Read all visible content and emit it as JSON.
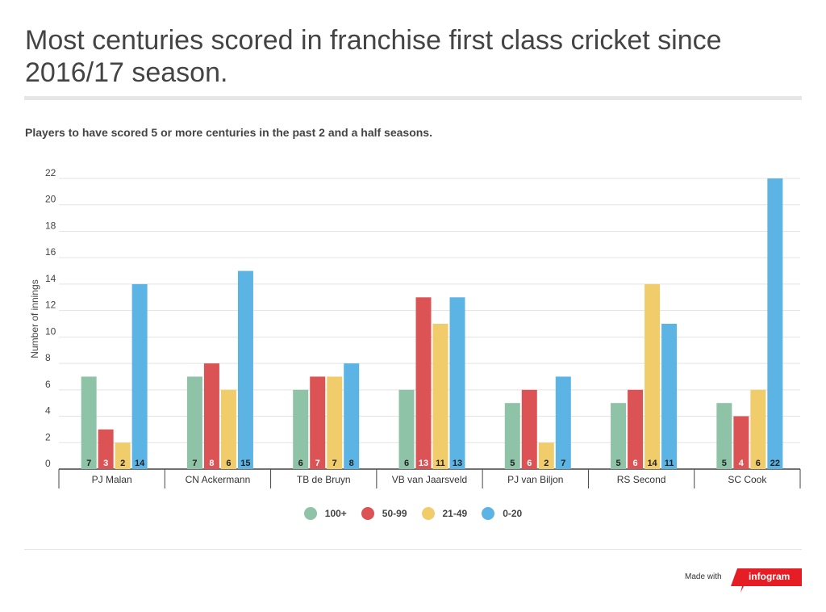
{
  "title": "Most centuries scored in franchise first class cricket since 2016/17 season.",
  "subtitle": "Players to have scored 5 or more centuries in the past 2 and a half seasons.",
  "footer": {
    "made_with": "Made with",
    "brand": "infogram"
  },
  "colors": {
    "100+": "#8ec3a7",
    "50-99": "#dc5356",
    "21-49": "#f0cd6a",
    "0-20": "#5cb4e4",
    "brand": "#e51e26"
  },
  "chart_data": {
    "type": "bar",
    "ylabel": "Number of innings",
    "xlabel": "",
    "ylim": [
      0,
      22
    ],
    "yticks": [
      0,
      2,
      4,
      6,
      8,
      10,
      12,
      14,
      16,
      18,
      20,
      22
    ],
    "grid": true,
    "legend_position": "bottom",
    "categories": [
      "PJ Malan",
      "CN Ackermann",
      "TB de Bruyn",
      "VB van Jaarsveld",
      "PJ van Biljon",
      "RS Second",
      "SC Cook"
    ],
    "series": [
      {
        "name": "100+",
        "color": "#8ec3a7",
        "values": [
          7,
          7,
          6,
          6,
          5,
          5,
          5
        ]
      },
      {
        "name": "50-99",
        "color": "#dc5356",
        "values": [
          3,
          8,
          7,
          13,
          6,
          6,
          4
        ]
      },
      {
        "name": "21-49",
        "color": "#f0cd6a",
        "values": [
          2,
          6,
          7,
          11,
          2,
          14,
          6
        ]
      },
      {
        "name": "0-20",
        "color": "#5cb4e4",
        "values": [
          14,
          15,
          8,
          13,
          7,
          11,
          22
        ]
      }
    ]
  }
}
